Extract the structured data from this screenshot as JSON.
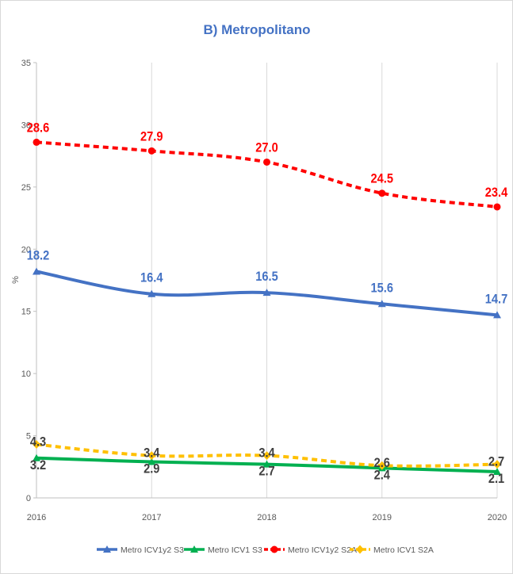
{
  "chart_data": {
    "type": "line",
    "title": "B) Metropolitano",
    "xlabel": "",
    "ylabel": "%",
    "x": [
      "2016",
      "2017",
      "2018",
      "2019",
      "2020"
    ],
    "ylim": [
      0,
      35
    ],
    "yticks": [
      "0",
      "5",
      "10",
      "15",
      "20",
      "25",
      "30",
      "35"
    ],
    "grid": "vertical",
    "legend_position": "bottom",
    "series": [
      {
        "name": "Metro ICV1y2 S3",
        "values": [
          18.2,
          16.4,
          16.5,
          15.6,
          14.7
        ],
        "labels": [
          "18.2",
          "16.4",
          "16.5",
          "15.6",
          "14.7"
        ],
        "color": "#4472c4",
        "style": "solid",
        "marker": "triangle"
      },
      {
        "name": "Metro ICV1 S3",
        "values": [
          3.2,
          2.9,
          2.7,
          2.4,
          2.1
        ],
        "labels": [
          "3.2",
          "2.9",
          "2.7",
          "2.4",
          "2.1"
        ],
        "color": "#00b050",
        "style": "solid",
        "marker": "triangle"
      },
      {
        "name": "Metro ICV1y2 S2A",
        "values": [
          28.6,
          27.9,
          27.0,
          24.5,
          23.4
        ],
        "labels": [
          "28.6",
          "27.9",
          "27.0",
          "24.5",
          "23.4"
        ],
        "color": "#ff0000",
        "style": "dashed",
        "marker": "circle"
      },
      {
        "name": "Metro ICV1 S2A",
        "values": [
          4.3,
          3.4,
          3.4,
          2.6,
          2.7
        ],
        "labels": [
          "4.3",
          "3.4",
          "3.4",
          "2.6",
          "2.7"
        ],
        "color": "#ffc000",
        "style": "dashed",
        "marker": "diamond"
      }
    ]
  }
}
